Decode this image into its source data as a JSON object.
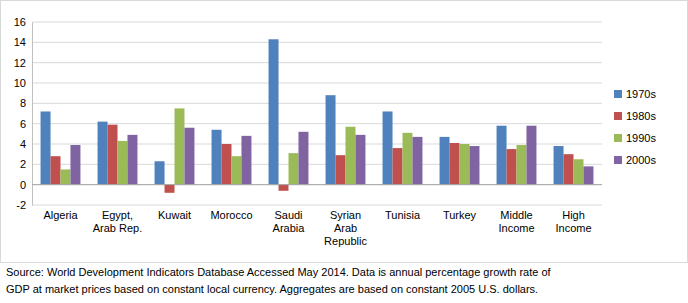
{
  "chart_data": {
    "type": "bar",
    "categories": [
      "Algeria",
      "Egypt, Arab Rep.",
      "Kuwait",
      "Morocco",
      "Saudi Arabia",
      "Syrian Arab Republic",
      "Tunisia",
      "Turkey",
      "Middle Income",
      "High Income"
    ],
    "series": [
      {
        "name": "1970s",
        "color": "#4f81bd",
        "values": [
          7.2,
          6.2,
          2.3,
          5.4,
          14.3,
          8.8,
          7.2,
          4.7,
          5.8,
          3.8
        ]
      },
      {
        "name": "1980s",
        "color": "#c0504d",
        "values": [
          2.8,
          5.9,
          -0.8,
          4.0,
          -0.6,
          2.9,
          3.6,
          4.1,
          3.5,
          3.0
        ]
      },
      {
        "name": "1990s",
        "color": "#9bbb59",
        "values": [
          1.5,
          4.3,
          7.5,
          2.8,
          3.1,
          5.7,
          5.1,
          4.0,
          3.9,
          2.5
        ]
      },
      {
        "name": "2000s",
        "color": "#8064a2",
        "values": [
          3.9,
          4.9,
          5.6,
          4.8,
          5.2,
          4.9,
          4.7,
          3.8,
          5.8,
          1.8
        ]
      }
    ],
    "ylim": [
      -2,
      16
    ],
    "yticks": [
      -2,
      0,
      2,
      4,
      6,
      8,
      10,
      12,
      14,
      16
    ],
    "grid": true,
    "legend": "right",
    "source": [
      "Source: World Development Indicators Database Accessed May 2014. Data is annual percentage growth rate of",
      "GDP at market prices based on constant local currency. Aggregates are based on constant 2005 U.S. dollars."
    ]
  }
}
